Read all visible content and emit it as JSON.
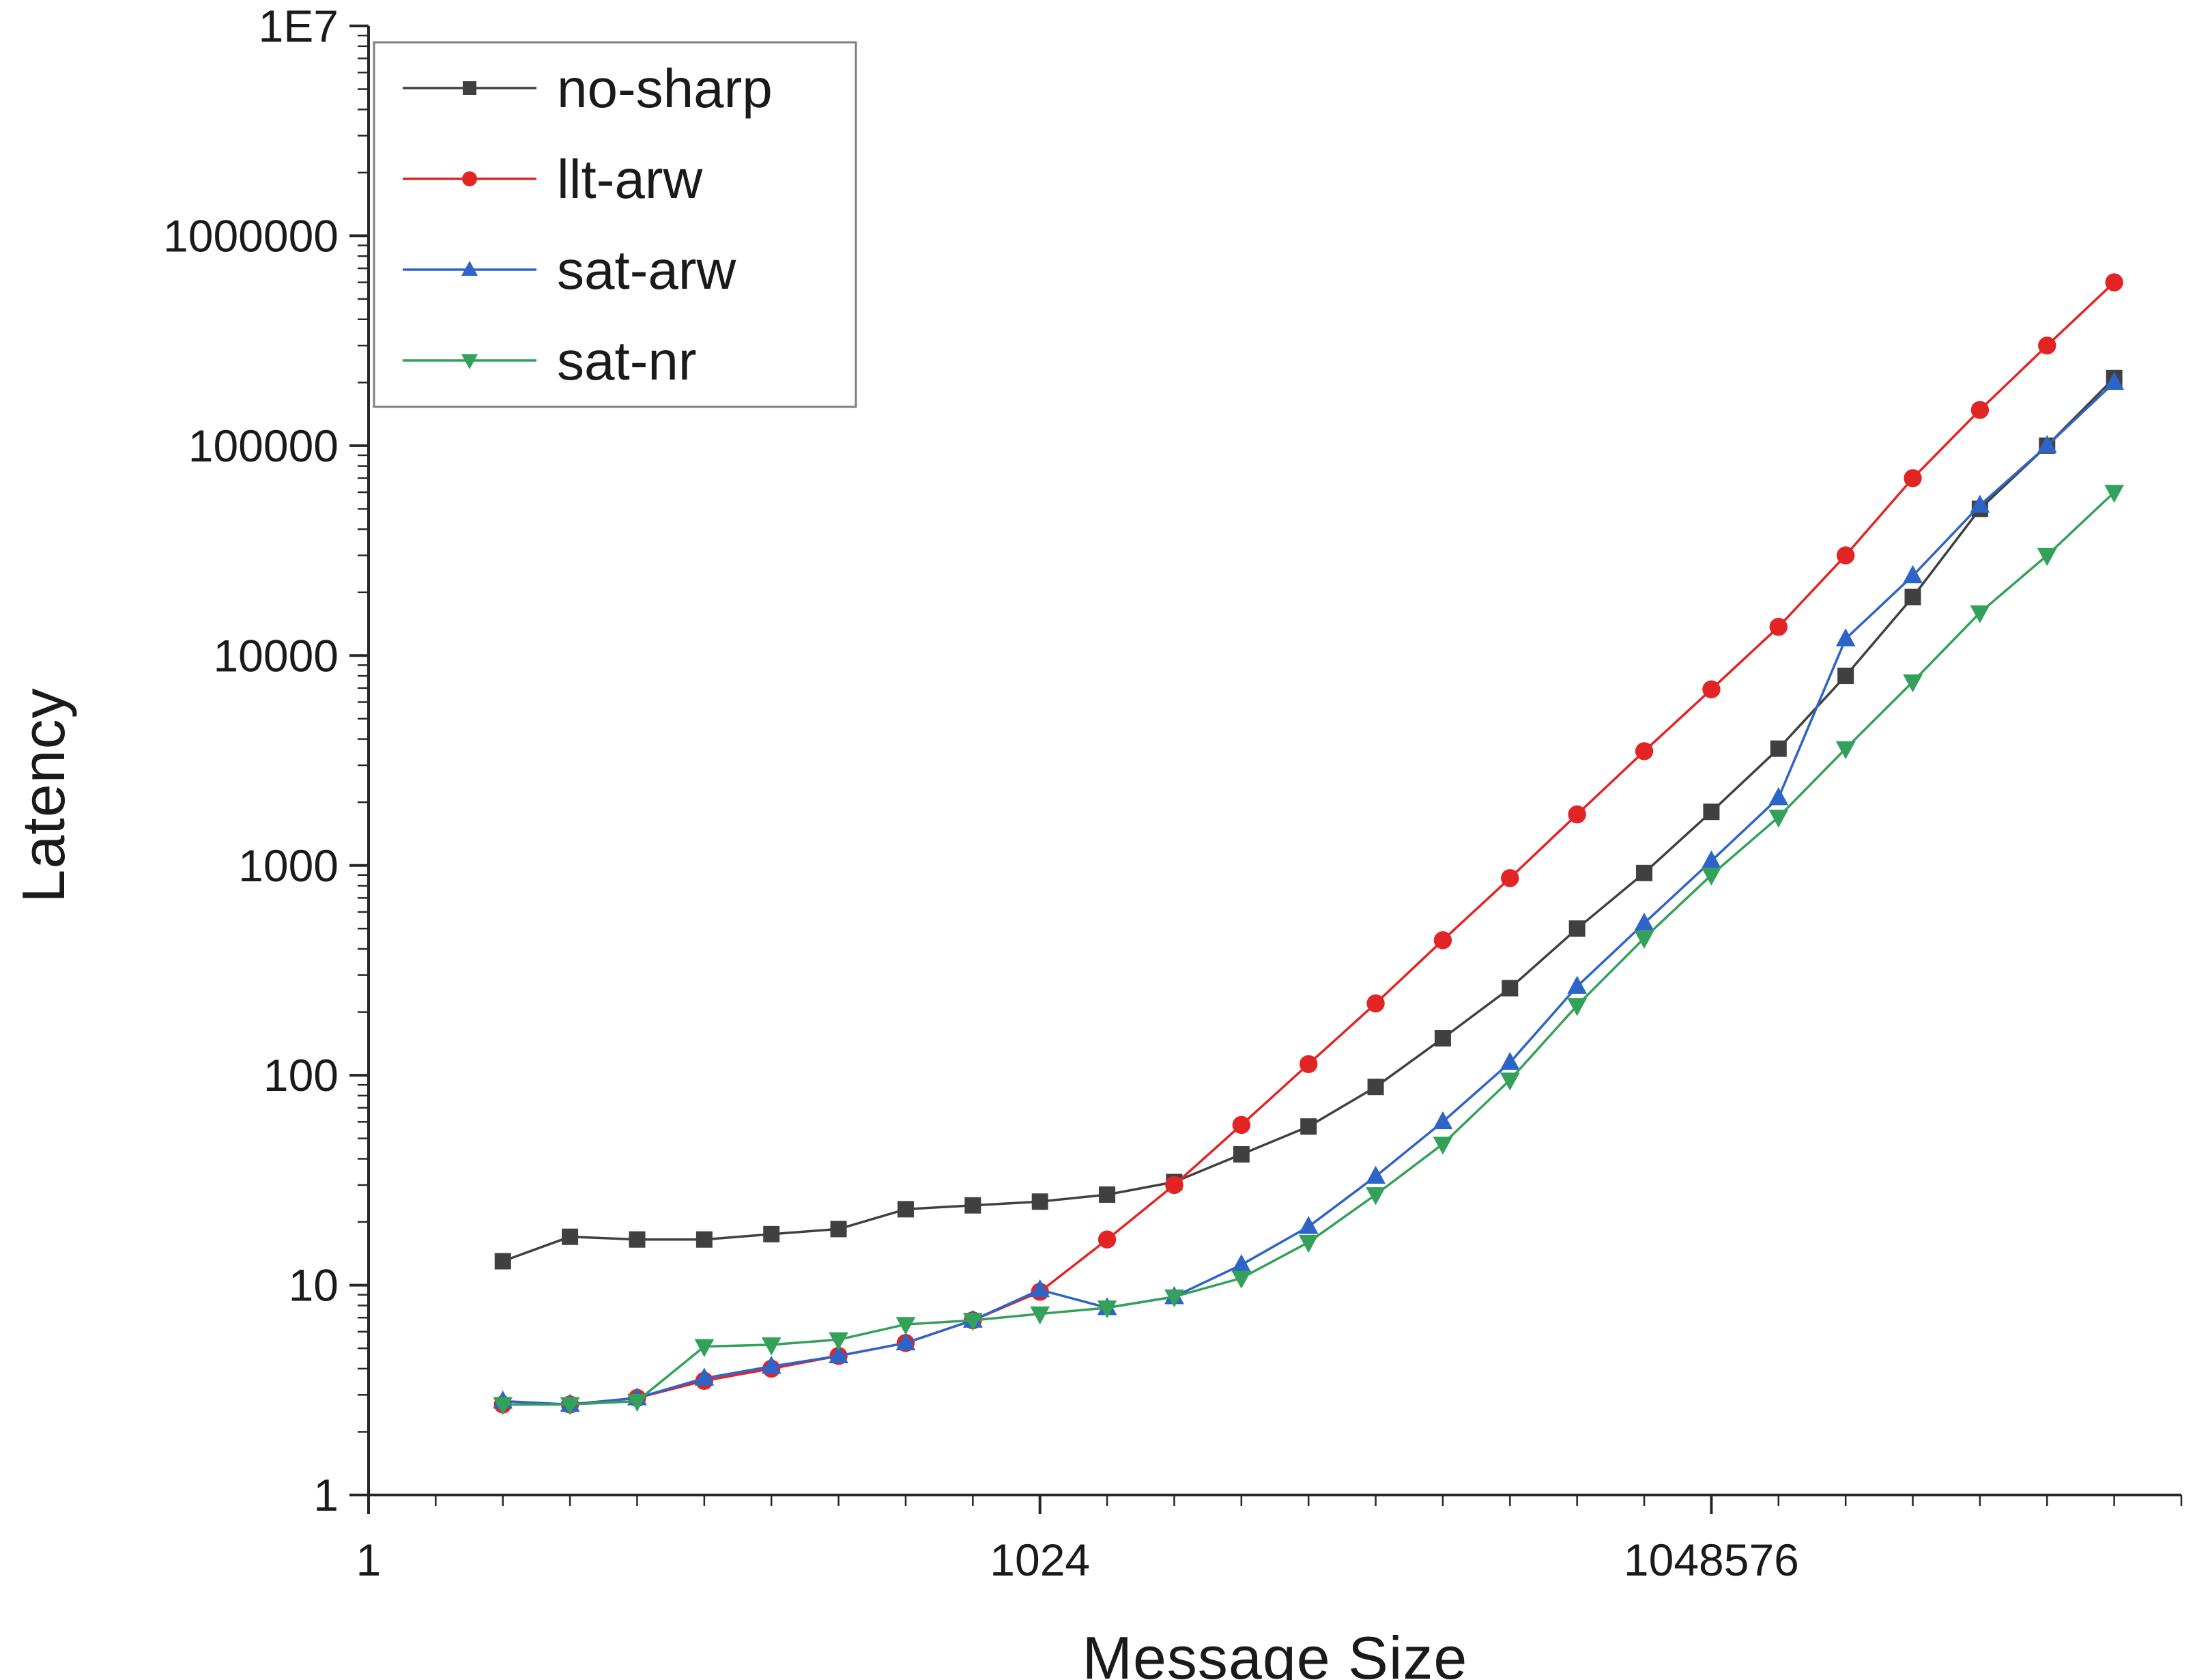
{
  "chart_data": {
    "type": "line",
    "title": "",
    "xlabel": "Message Size",
    "ylabel": "Latency",
    "x_scale": "log2",
    "y_scale": "log10",
    "x_range": [
      1,
      134217728
    ],
    "y_range": [
      1,
      10000000
    ],
    "grid": false,
    "legend_position": "top-left",
    "x_major_ticks": [
      {
        "value": 1,
        "label": "1"
      },
      {
        "value": 1024,
        "label": "1024"
      },
      {
        "value": 1048576,
        "label": "1048576"
      }
    ],
    "y_major_ticks": [
      {
        "value": 1,
        "label": "1"
      },
      {
        "value": 10,
        "label": "10"
      },
      {
        "value": 100,
        "label": "100"
      },
      {
        "value": 1000,
        "label": "1000"
      },
      {
        "value": 10000,
        "label": "10000"
      },
      {
        "value": 100000,
        "label": "100000"
      },
      {
        "value": 1000000,
        "label": "1000000"
      },
      {
        "value": 10000000,
        "label": "1E7"
      }
    ],
    "x": [
      4,
      8,
      16,
      32,
      64,
      128,
      256,
      512,
      1024,
      2048,
      4096,
      8192,
      16384,
      32768,
      65536,
      131072,
      262144,
      524288,
      1048576,
      2097152,
      4194304,
      8388608,
      16777216,
      33554432,
      67108864
    ],
    "series": [
      {
        "name": "no-sharp",
        "color": "#404040",
        "marker": "square",
        "values": [
          13,
          17,
          16.5,
          16.5,
          17.5,
          18.5,
          23,
          24,
          25,
          27,
          31,
          42,
          57,
          88,
          150,
          260,
          500,
          920,
          1800,
          3600,
          8000,
          19000,
          50000,
          100000,
          210000
        ]
      },
      {
        "name": "llt-arw",
        "color": "#e32424",
        "marker": "circle",
        "values": [
          2.7,
          2.7,
          2.9,
          3.5,
          4.0,
          4.6,
          5.3,
          6.8,
          9.3,
          16.5,
          30,
          58,
          113,
          220,
          440,
          870,
          1750,
          3500,
          6900,
          13700,
          30000,
          70000,
          148000,
          300000,
          600000
        ]
      },
      {
        "name": "sat-arw",
        "color": "#2d64c8",
        "marker": "triangle-up",
        "values": [
          2.8,
          2.7,
          2.9,
          3.6,
          4.1,
          4.6,
          5.3,
          6.8,
          9.5,
          7.8,
          8.8,
          12.5,
          19,
          33,
          60,
          115,
          265,
          530,
          1050,
          2100,
          12000,
          24000,
          52000,
          100000,
          200000
        ]
      },
      {
        "name": "sat-nr",
        "color": "#33a15a",
        "marker": "triangle-down",
        "values": [
          2.7,
          2.7,
          2.8,
          5.1,
          5.2,
          5.5,
          6.5,
          6.8,
          7.3,
          7.8,
          8.8,
          10.8,
          16,
          27,
          47,
          95,
          215,
          450,
          900,
          1700,
          3600,
          7500,
          16000,
          30000,
          60000
        ]
      }
    ]
  }
}
